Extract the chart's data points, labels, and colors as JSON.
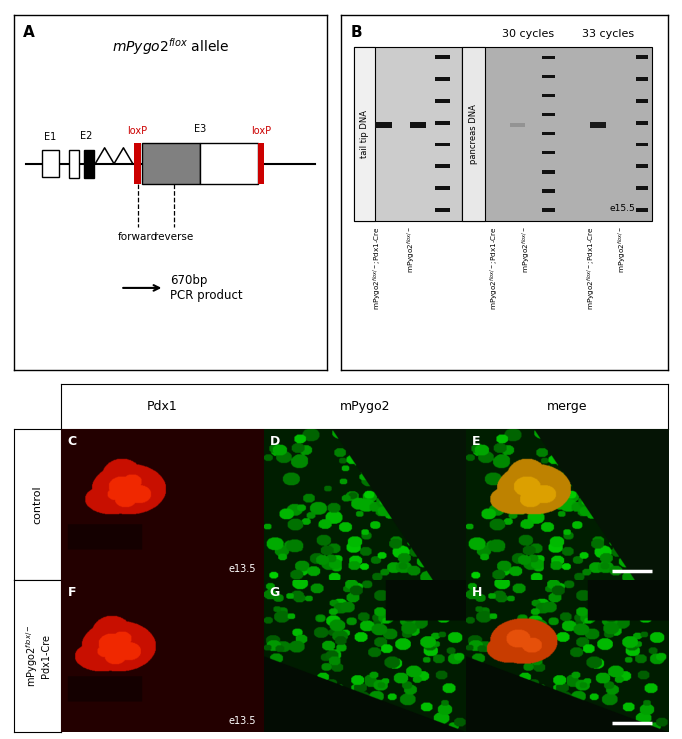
{
  "fig_width": 6.82,
  "fig_height": 7.39,
  "bg_color": "#ffffff",
  "title_italic": "mPygo2",
  "title_super": "flox",
  "title_suffix": " allele",
  "loxP_color": "#cc0000",
  "panel_row1_label": "control",
  "panel_row2_label": "mPygo2flox/-\nPdx1-Cre",
  "col_labels": [
    "Pdx1",
    "mPygo2",
    "merge"
  ],
  "e135_label": "e13.5",
  "e155_label": "e15.5",
  "cycles_30": "30 cycles",
  "cycles_33": "33 cycles",
  "tail_label": "tail tip DNA",
  "panc_label": "pancreas DNA",
  "pcr_text": "670bp\nPCR product",
  "forward_label": "forward",
  "reverse_label": "reverse",
  "scale_bar_color": "#ffffff"
}
